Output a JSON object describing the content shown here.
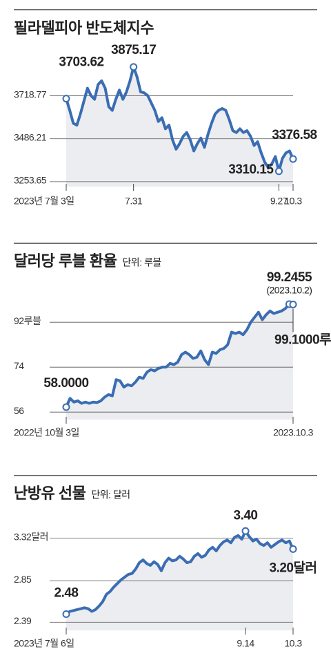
{
  "chart_data": [
    {
      "type": "line",
      "title": "필라델피아 반도체지수",
      "categories": [
        "2023년 7월 3일",
        null,
        null,
        null,
        null,
        null,
        null,
        null,
        null,
        null,
        null,
        null,
        null,
        null,
        null,
        null,
        null,
        null,
        null,
        "7.31",
        null,
        null,
        null,
        null,
        null,
        null,
        null,
        null,
        null,
        null,
        null,
        null,
        null,
        null,
        null,
        null,
        null,
        null,
        null,
        null,
        null,
        null,
        null,
        null,
        null,
        null,
        null,
        null,
        null,
        null,
        null,
        null,
        null,
        null,
        null,
        null,
        null,
        null,
        null,
        null,
        "9.27",
        null,
        null,
        null,
        "10.3"
      ],
      "values": [
        3703.62,
        3640,
        3570,
        3560,
        3620,
        3690,
        3760,
        3720,
        3700,
        3780,
        3800,
        3760,
        3660,
        3640,
        3700,
        3750,
        3700,
        3740,
        3800,
        3875.17,
        3820,
        3740,
        3735,
        3720,
        3680,
        3640,
        3580,
        3600,
        3540,
        3560,
        3480,
        3430,
        3460,
        3500,
        3520,
        3480,
        3420,
        3460,
        3490,
        3440,
        3510,
        3570,
        3620,
        3640,
        3650,
        3640,
        3590,
        3530,
        3520,
        3540,
        3520,
        3530,
        3500,
        3450,
        3470,
        3410,
        3360,
        3330,
        3350,
        3390,
        3310.15,
        3380,
        3410,
        3420,
        3376.58
      ],
      "value_labels": [
        "3703.62",
        null,
        null,
        null,
        null,
        null,
        null,
        null,
        null,
        null,
        null,
        null,
        null,
        null,
        null,
        null,
        null,
        null,
        null,
        "3875.17",
        null,
        null,
        null,
        null,
        null,
        null,
        null,
        null,
        null,
        null,
        null,
        null,
        null,
        null,
        null,
        null,
        null,
        null,
        null,
        null,
        null,
        null,
        null,
        null,
        null,
        null,
        null,
        null,
        null,
        null,
        null,
        null,
        null,
        null,
        null,
        null,
        null,
        null,
        null,
        null,
        "3310.15",
        null,
        null,
        null,
        "3376.58"
      ],
      "color": "#3a6db3",
      "area_color": "#ecedf0",
      "ylim": [
        3227,
        3957
      ],
      "yticks": [
        3253.65,
        3486.21,
        3718.77
      ],
      "grid": true
    },
    {
      "type": "line",
      "title": "달러당 루블 환율",
      "subtitle": "단위: 루블",
      "categories": [
        "2022년 10월 3일",
        null,
        null,
        null,
        null,
        null,
        null,
        null,
        null,
        null,
        null,
        null,
        null,
        null,
        null,
        null,
        null,
        null,
        null,
        null,
        null,
        null,
        null,
        null,
        null,
        null,
        null,
        null,
        null,
        null,
        null,
        null,
        null,
        null,
        null,
        null,
        null,
        null,
        null,
        null,
        null,
        null,
        null,
        null,
        null,
        null,
        null,
        null,
        null,
        null,
        null,
        null,
        null,
        null,
        null,
        null,
        null,
        null,
        null,
        "2023.10.3"
      ],
      "values": [
        58,
        61.5,
        60,
        60.5,
        59.5,
        60,
        59.5,
        60,
        59.8,
        60.5,
        62,
        63,
        62.5,
        69,
        68.5,
        66,
        67,
        66.5,
        68,
        70,
        69.5,
        72,
        73,
        72.5,
        73.5,
        74,
        74,
        75.5,
        75,
        76,
        79,
        80,
        79,
        77.5,
        78,
        80.5,
        77,
        75,
        80,
        79.5,
        81,
        81.5,
        83,
        88,
        87.5,
        88,
        87,
        89,
        92,
        94,
        96,
        93,
        95,
        96.5,
        95.5,
        96,
        96.5,
        97.5,
        99.2455,
        99.1
      ],
      "value_labels": [
        "58.0000",
        null,
        null,
        null,
        null,
        null,
        null,
        null,
        null,
        null,
        null,
        null,
        null,
        null,
        null,
        null,
        null,
        null,
        null,
        null,
        null,
        null,
        null,
        null,
        null,
        null,
        null,
        null,
        null,
        null,
        null,
        null,
        null,
        null,
        null,
        null,
        null,
        null,
        null,
        null,
        null,
        null,
        null,
        null,
        null,
        null,
        null,
        null,
        null,
        null,
        null,
        null,
        null,
        null,
        null,
        null,
        null,
        null,
        "99.2455",
        "99.1000루블"
      ],
      "annotations": [
        "(2023.10.2)"
      ],
      "color": "#3a6db3",
      "area_color": "#ecedf0",
      "ylim": [
        53,
        107
      ],
      "yticks": [
        56,
        74,
        {
          "value": 92,
          "label": "92루블"
        }
      ],
      "grid": true
    },
    {
      "type": "line",
      "title": "난방유 선물",
      "subtitle": "단위: 달러",
      "categories": [
        "2023년 7월 6일",
        null,
        null,
        null,
        null,
        null,
        null,
        null,
        null,
        null,
        null,
        null,
        null,
        null,
        null,
        null,
        null,
        null,
        null,
        null,
        null,
        null,
        null,
        null,
        null,
        null,
        null,
        null,
        null,
        null,
        null,
        null,
        null,
        null,
        null,
        null,
        null,
        null,
        null,
        null,
        null,
        null,
        null,
        null,
        null,
        null,
        null,
        null,
        null,
        "9.14",
        null,
        null,
        null,
        null,
        null,
        null,
        null,
        null,
        null,
        null,
        null,
        null,
        "10.3"
      ],
      "values": [
        2.48,
        2.51,
        2.52,
        2.53,
        2.54,
        2.55,
        2.54,
        2.51,
        2.53,
        2.57,
        2.62,
        2.7,
        2.73,
        2.78,
        2.82,
        2.86,
        2.89,
        2.92,
        2.93,
        2.98,
        3.05,
        3.08,
        3.04,
        3.02,
        3.06,
        3.03,
        2.96,
        3.05,
        3.1,
        3.07,
        3.08,
        3.12,
        3.09,
        3.05,
        3.06,
        3.12,
        3.15,
        3.11,
        3.13,
        3.19,
        3.22,
        3.18,
        3.24,
        3.28,
        3.3,
        3.27,
        3.33,
        3.35,
        3.31,
        3.4,
        3.34,
        3.29,
        3.31,
        3.26,
        3.24,
        3.27,
        3.22,
        3.25,
        3.28,
        3.3,
        3.27,
        3.29,
        3.2
      ],
      "value_labels": [
        "2.48",
        null,
        null,
        null,
        null,
        null,
        null,
        null,
        null,
        null,
        null,
        null,
        null,
        null,
        null,
        null,
        null,
        null,
        null,
        null,
        null,
        null,
        null,
        null,
        null,
        null,
        null,
        null,
        null,
        null,
        null,
        null,
        null,
        null,
        null,
        null,
        null,
        null,
        null,
        null,
        null,
        null,
        null,
        null,
        null,
        null,
        null,
        null,
        null,
        "3.40",
        null,
        null,
        null,
        null,
        null,
        null,
        null,
        null,
        null,
        null,
        null,
        null,
        "3.20달러"
      ],
      "color": "#3a6db3",
      "area_color": "#ecedf0",
      "ylim": [
        2.3,
        3.54
      ],
      "yticks": [
        2.39,
        2.85,
        {
          "value": 3.32,
          "label": "3.32달러"
        }
      ],
      "grid": true
    }
  ]
}
